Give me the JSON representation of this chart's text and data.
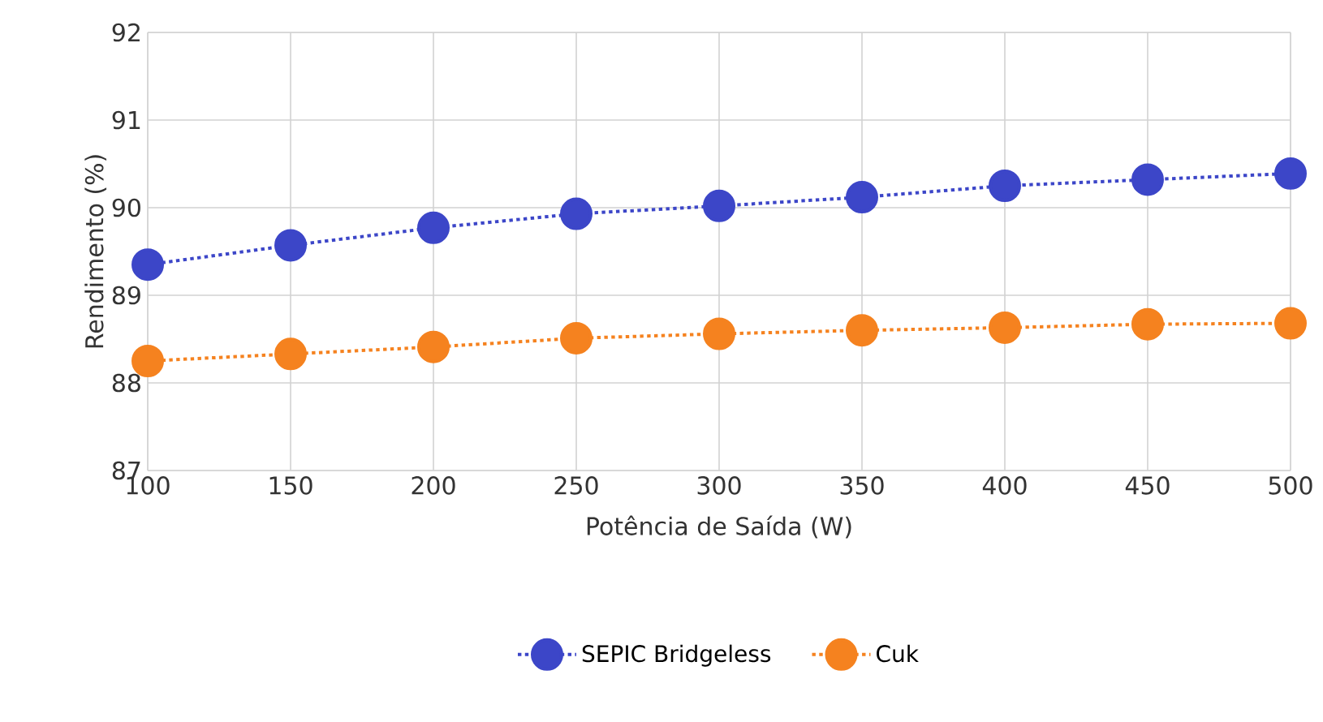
{
  "chart_data": {
    "type": "line",
    "xlabel": "Potência de Saída (W)",
    "ylabel": "Rendimento (%)",
    "x": [
      100,
      150,
      200,
      250,
      300,
      350,
      400,
      450,
      500
    ],
    "series": [
      {
        "name": "SEPIC Bridgeless",
        "color": "#3c46c8",
        "values": [
          89.35,
          89.57,
          89.77,
          89.93,
          90.02,
          90.12,
          90.25,
          90.32,
          90.39
        ]
      },
      {
        "name": "Cuk",
        "color": "#f5821f",
        "values": [
          88.25,
          88.33,
          88.41,
          88.51,
          88.56,
          88.6,
          88.63,
          88.67,
          88.68
        ]
      }
    ],
    "xlim": [
      100,
      500
    ],
    "xticks": [
      100,
      150,
      200,
      250,
      300,
      350,
      400,
      450,
      500
    ],
    "ylim": [
      87,
      92
    ],
    "yticks": [
      87,
      88,
      89,
      90,
      91,
      92
    ],
    "grid": true,
    "legend": "bottom",
    "marker": "circle",
    "line_style": "dotted"
  }
}
